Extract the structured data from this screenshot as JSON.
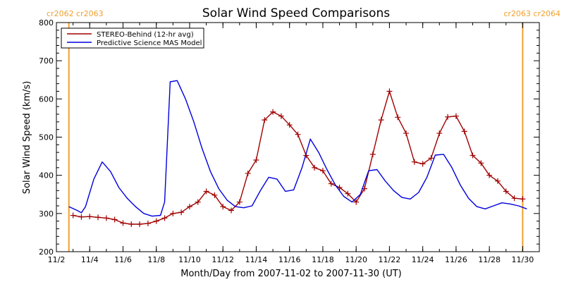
{
  "chart_data": {
    "type": "line",
    "title": "Solar Wind Speed Comparisons",
    "xlabel": "Month/Day from 2007-11-02 to 2007-11-30 (UT)",
    "ylabel": "Solar Wind Speed (km/s)",
    "xlim": [
      "2007-11-02",
      "2007-11-31"
    ],
    "ylim": [
      200,
      800
    ],
    "yticks": [
      200,
      300,
      400,
      500,
      600,
      700,
      800
    ],
    "xtick_labels": [
      "11/2",
      "11/4",
      "11/6",
      "11/8",
      "11/10",
      "11/12",
      "11/14",
      "11/16",
      "11/18",
      "11/20",
      "11/22",
      "11/24",
      "11/26",
      "11/28",
      "11/30"
    ],
    "xtick_dates": [
      "2007-11-02",
      "2007-11-04",
      "2007-11-06",
      "2007-11-08",
      "2007-11-10",
      "2007-11-12",
      "2007-11-14",
      "2007-11-16",
      "2007-11-18",
      "2007-11-20",
      "2007-11-22",
      "2007-11-24",
      "2007-11-26",
      "2007-11-28",
      "2007-11-30"
    ],
    "grid": false,
    "legend_position": "top-left",
    "carrington_markers": [
      {
        "label": "cr2062 cr2063",
        "x": "2007-11-02 18:00",
        "side": "left"
      },
      {
        "label": "cr2063 cr2064",
        "x": "2007-11-30 00:00",
        "side": "right"
      }
    ],
    "series": [
      {
        "name": "STEREO-Behind (12-hr avg)",
        "color": "#a00000",
        "marker": "plus",
        "x": [
          "2007-11-03 00:00",
          "2007-11-03 12:00",
          "2007-11-04 00:00",
          "2007-11-04 12:00",
          "2007-11-05 00:00",
          "2007-11-05 12:00",
          "2007-11-06 00:00",
          "2007-11-06 12:00",
          "2007-11-07 00:00",
          "2007-11-07 12:00",
          "2007-11-08 00:00",
          "2007-11-08 12:00",
          "2007-11-09 00:00",
          "2007-11-09 12:00",
          "2007-11-10 00:00",
          "2007-11-10 12:00",
          "2007-11-11 00:00",
          "2007-11-11 12:00",
          "2007-11-12 00:00",
          "2007-11-12 12:00",
          "2007-11-13 00:00",
          "2007-11-13 12:00",
          "2007-11-14 00:00",
          "2007-11-14 12:00",
          "2007-11-15 00:00",
          "2007-11-15 12:00",
          "2007-11-16 00:00",
          "2007-11-16 12:00",
          "2007-11-17 00:00",
          "2007-11-17 12:00",
          "2007-11-18 00:00",
          "2007-11-18 12:00",
          "2007-11-19 00:00",
          "2007-11-19 12:00",
          "2007-11-20 00:00",
          "2007-11-20 12:00",
          "2007-11-21 00:00",
          "2007-11-21 12:00",
          "2007-11-22 00:00",
          "2007-11-22 12:00",
          "2007-11-23 00:00",
          "2007-11-23 12:00",
          "2007-11-24 00:00",
          "2007-11-24 12:00",
          "2007-11-25 00:00",
          "2007-11-25 12:00",
          "2007-11-26 00:00",
          "2007-11-26 12:00",
          "2007-11-27 00:00",
          "2007-11-27 12:00",
          "2007-11-28 00:00",
          "2007-11-28 12:00",
          "2007-11-29 00:00",
          "2007-11-29 12:00",
          "2007-11-30 00:00"
        ],
        "values": [
          295,
          291,
          292,
          290,
          288,
          284,
          275,
          272,
          272,
          274,
          280,
          288,
          300,
          303,
          318,
          330,
          358,
          348,
          318,
          308,
          330,
          405,
          440,
          545,
          566,
          555,
          532,
          507,
          452,
          420,
          412,
          378,
          368,
          352,
          330,
          365,
          455,
          545,
          620,
          552,
          510,
          435,
          430,
          445,
          510,
          553,
          555,
          515,
          452,
          432,
          400,
          385,
          358,
          340,
          338
        ]
      },
      {
        "name": "Predictive Science MAS Model",
        "color": "#0000dd",
        "marker": "none",
        "x": [
          "2007-11-02 18:00",
          "2007-11-03 06:00",
          "2007-11-03 12:00",
          "2007-11-03 18:00",
          "2007-11-04 06:00",
          "2007-11-04 18:00",
          "2007-11-05 06:00",
          "2007-11-05 18:00",
          "2007-11-06 06:00",
          "2007-11-06 18:00",
          "2007-11-07 06:00",
          "2007-11-07 18:00",
          "2007-11-08 06:00",
          "2007-11-08 12:00",
          "2007-11-08 20:00",
          "2007-11-09 06:00",
          "2007-11-09 18:00",
          "2007-11-10 06:00",
          "2007-11-10 18:00",
          "2007-11-11 06:00",
          "2007-11-11 18:00",
          "2007-11-12 06:00",
          "2007-11-12 18:00",
          "2007-11-13 06:00",
          "2007-11-13 18:00",
          "2007-11-14 06:00",
          "2007-11-14 18:00",
          "2007-11-15 06:00",
          "2007-11-15 18:00",
          "2007-11-16 06:00",
          "2007-11-16 18:00",
          "2007-11-17 06:00",
          "2007-11-17 18:00",
          "2007-11-18 06:00",
          "2007-11-18 18:00",
          "2007-11-19 06:00",
          "2007-11-19 18:00",
          "2007-11-20 06:00",
          "2007-11-20 18:00",
          "2007-11-21 06:00",
          "2007-11-21 18:00",
          "2007-11-22 06:00",
          "2007-11-22 18:00",
          "2007-11-23 06:00",
          "2007-11-23 18:00",
          "2007-11-24 06:00",
          "2007-11-24 18:00",
          "2007-11-25 06:00",
          "2007-11-25 18:00",
          "2007-11-26 06:00",
          "2007-11-26 18:00",
          "2007-11-27 06:00",
          "2007-11-27 18:00",
          "2007-11-28 06:00",
          "2007-11-28 18:00",
          "2007-11-29 06:00",
          "2007-11-29 18:00",
          "2007-11-30 06:00"
        ],
        "values": [
          318,
          308,
          302,
          318,
          390,
          435,
          410,
          368,
          340,
          318,
          300,
          293,
          295,
          330,
          645,
          648,
          600,
          540,
          470,
          410,
          365,
          335,
          318,
          315,
          320,
          360,
          395,
          390,
          358,
          362,
          420,
          495,
          460,
          415,
          375,
          345,
          330,
          350,
          412,
          415,
          385,
          360,
          342,
          338,
          355,
          395,
          453,
          455,
          420,
          375,
          340,
          318,
          312,
          320,
          328,
          325,
          320,
          312
        ]
      }
    ]
  }
}
